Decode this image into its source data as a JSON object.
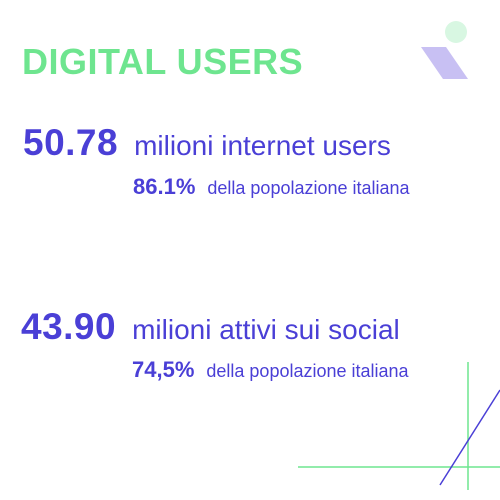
{
  "title": "DIGITAL USERS",
  "stats": [
    {
      "value": "50.78",
      "label": "milioni internet users",
      "percent": "86.1%",
      "percent_label": "della popolazione italiana"
    },
    {
      "value": "43.90",
      "label": "milioni attivi sui social",
      "percent": "74,5%",
      "percent_label": "della popolazione italiana"
    }
  ],
  "colors": {
    "primary": "#4a3fd6",
    "accent_green": "#6ee58f",
    "mint_circle": "#d8f7e2",
    "lavender": "#c8c0f3"
  },
  "icons": [
    "logo-mark-icon",
    "corner-lines-decoration"
  ]
}
